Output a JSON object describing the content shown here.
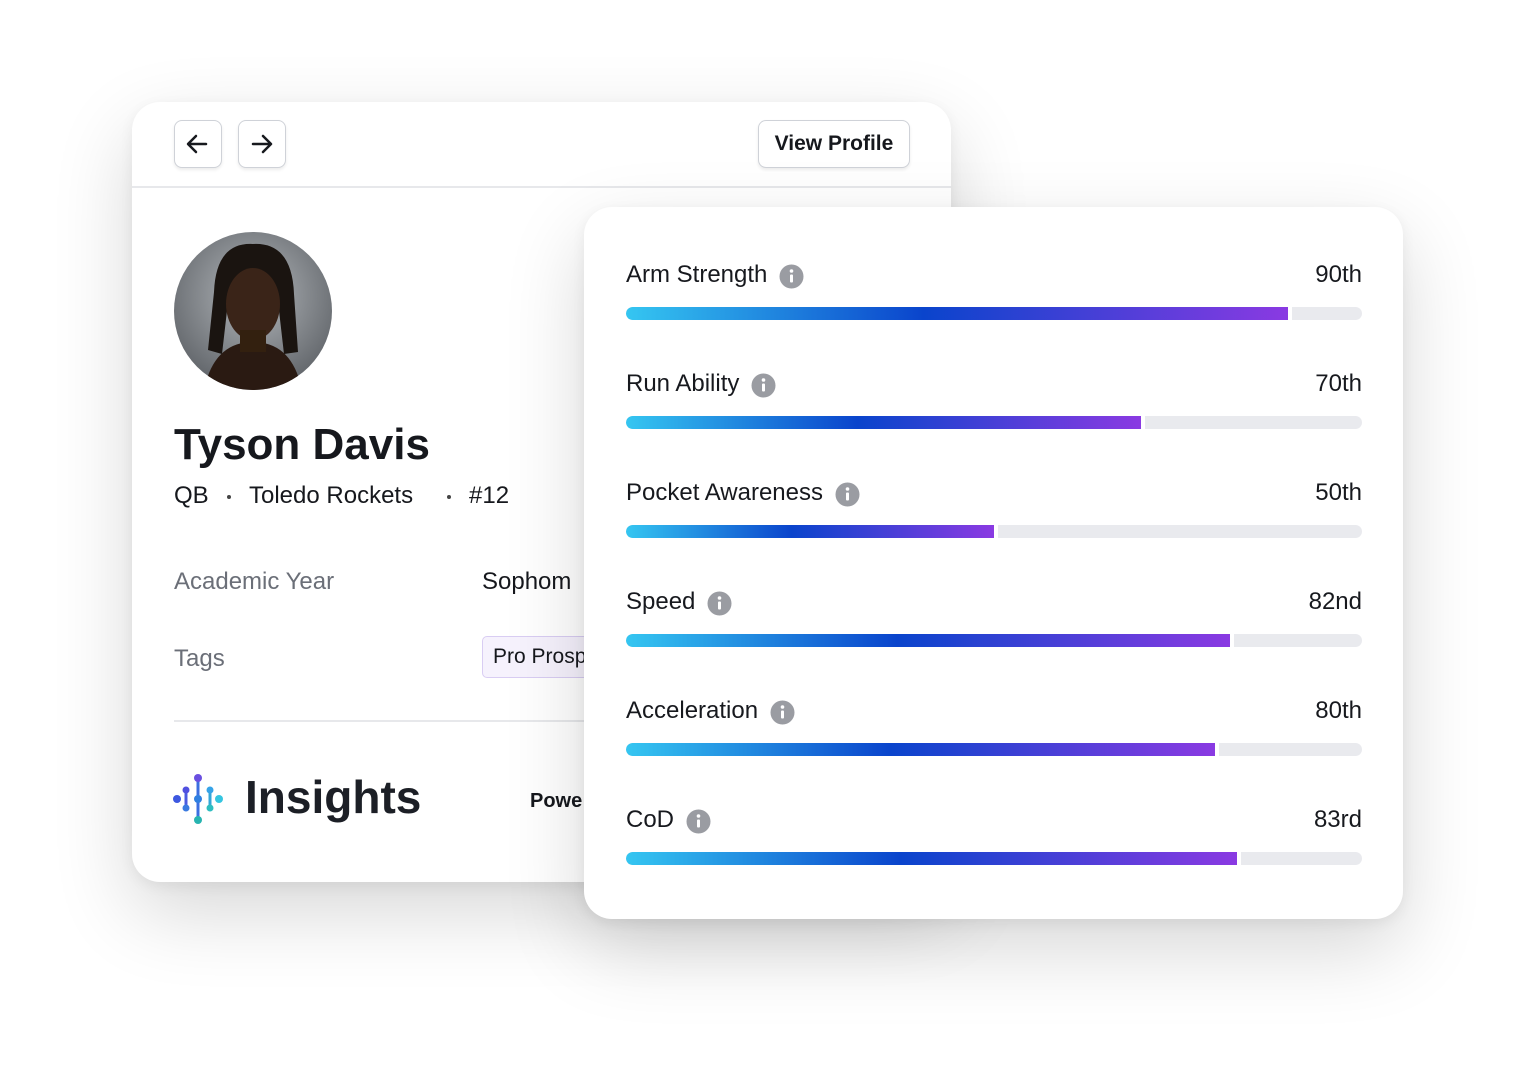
{
  "nav": {
    "button": "View Profile"
  },
  "profile": {
    "name": "Tyson Davis",
    "position": "QB",
    "team": "Toledo Rockets",
    "number": "#12",
    "fields": [
      {
        "label": "Academic Year",
        "value": "Sophom"
      },
      {
        "label": "Tags",
        "value": "Pro Prosp"
      }
    ]
  },
  "insights": {
    "title": "Insights",
    "powered": "Powe"
  },
  "stats": {
    "xlim": [
      0,
      100
    ],
    "items": [
      {
        "label": "Arm Strength",
        "value": 90,
        "value_label": "90th"
      },
      {
        "label": "Run Ability",
        "value": 70,
        "value_label": "70th"
      },
      {
        "label": "Pocket Awareness",
        "value": 50,
        "value_label": "50th"
      },
      {
        "label": "Speed",
        "value": 82,
        "value_label": "82nd"
      },
      {
        "label": "Acceleration",
        "value": 80,
        "value_label": "80th"
      },
      {
        "label": "CoD",
        "value": 83,
        "value_label": "83rd"
      }
    ]
  }
}
